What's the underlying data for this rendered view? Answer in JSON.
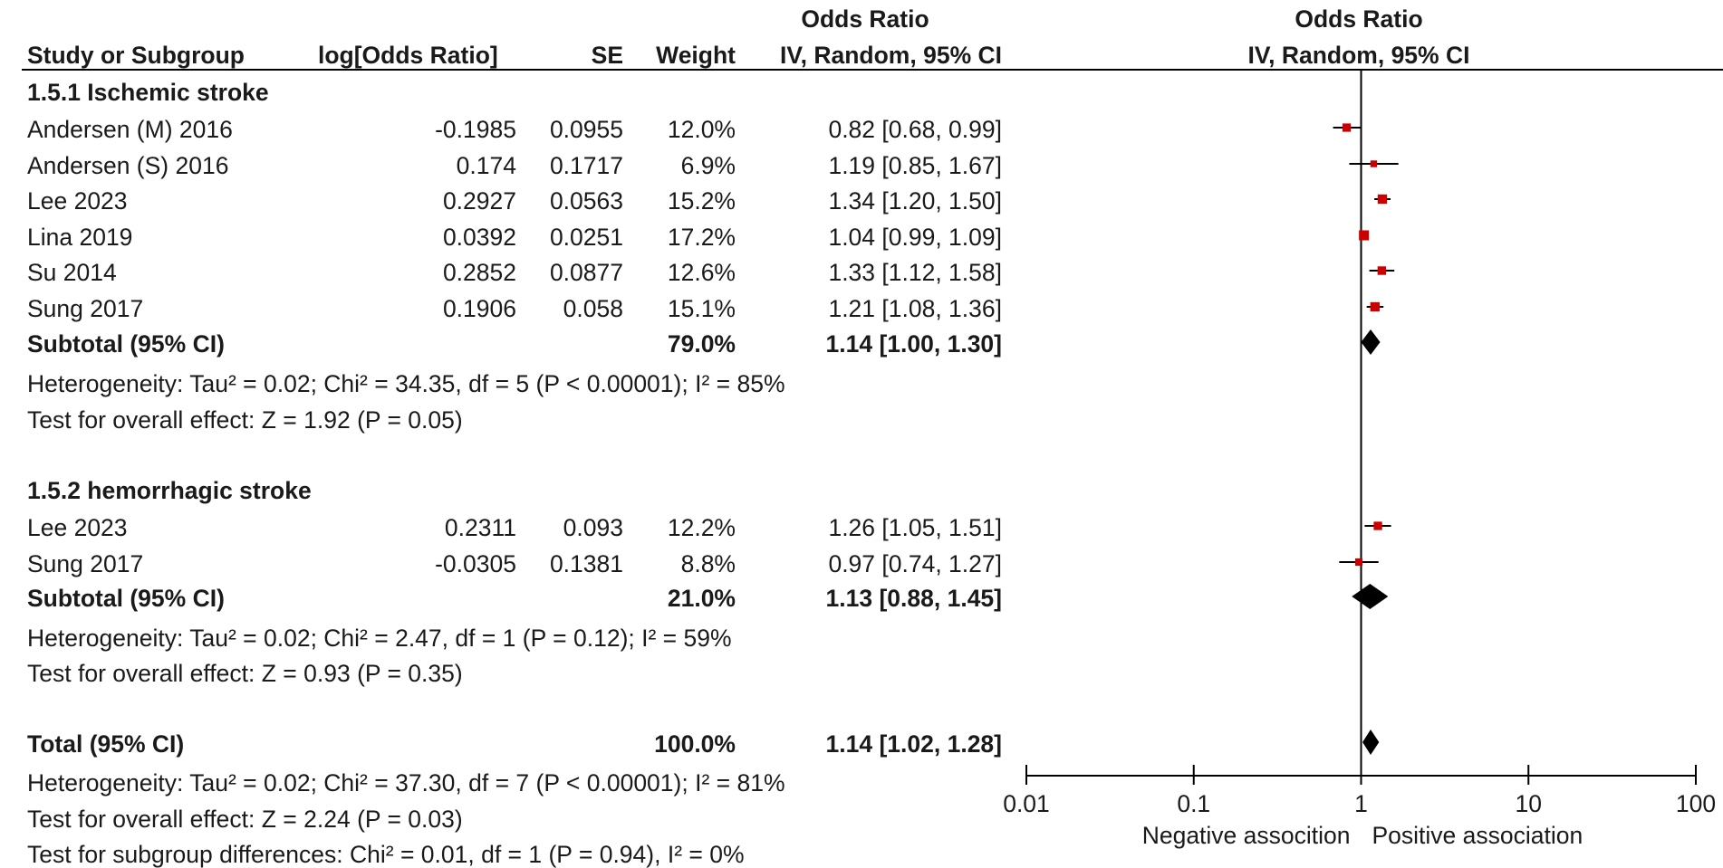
{
  "header": {
    "col_study": "Study or Subgroup",
    "col_log": "log[Odds Ratio]",
    "col_se": "SE",
    "col_weight": "Weight",
    "col_or_title": "Odds Ratio",
    "col_or_sub": "IV, Random, 95% CI",
    "plot_title": "Odds Ratio",
    "plot_sub": "IV, Random, 95% CI"
  },
  "subgroups": [
    {
      "title": "1.5.1 Ischemic stroke",
      "studies": [
        {
          "name": "Andersen (M) 2016",
          "log": "-0.1985",
          "se": "0.0955",
          "weight": "12.0%",
          "ci": "0.82 [0.68, 0.99]"
        },
        {
          "name": "Andersen (S) 2016",
          "log": "0.174",
          "se": "0.1717",
          "weight": "6.9%",
          "ci": "1.19 [0.85, 1.67]"
        },
        {
          "name": "Lee 2023",
          "log": "0.2927",
          "se": "0.0563",
          "weight": "15.2%",
          "ci": "1.34 [1.20, 1.50]"
        },
        {
          "name": "Lina 2019",
          "log": "0.0392",
          "se": "0.0251",
          "weight": "17.2%",
          "ci": "1.04 [0.99, 1.09]"
        },
        {
          "name": "Su 2014",
          "log": "0.2852",
          "se": "0.0877",
          "weight": "12.6%",
          "ci": "1.33 [1.12, 1.58]"
        },
        {
          "name": "Sung 2017",
          "log": "0.1906",
          "se": "0.058",
          "weight": "15.1%",
          "ci": "1.21 [1.08, 1.36]"
        }
      ],
      "subtotal_label": "Subtotal (95% CI)",
      "subtotal_weight": "79.0%",
      "subtotal_ci": "1.14 [1.00, 1.30]",
      "heterogeneity": "Heterogeneity: Tau² = 0.02; Chi² = 34.35, df = 5 (P < 0.00001); I² = 85%",
      "overall": "Test for overall effect: Z = 1.92 (P = 0.05)"
    },
    {
      "title": "1.5.2 hemorrhagic stroke",
      "studies": [
        {
          "name": "Lee 2023",
          "log": "0.2311",
          "se": "0.093",
          "weight": "12.2%",
          "ci": "1.26 [1.05, 1.51]"
        },
        {
          "name": "Sung 2017",
          "log": "-0.0305",
          "se": "0.1381",
          "weight": "8.8%",
          "ci": "0.97 [0.74, 1.27]"
        }
      ],
      "subtotal_label": "Subtotal (95% CI)",
      "subtotal_weight": "21.0%",
      "subtotal_ci": "1.13 [0.88, 1.45]",
      "heterogeneity": "Heterogeneity: Tau² = 0.02; Chi² = 2.47, df = 1 (P = 0.12); I² = 59%",
      "overall": "Test for overall effect: Z = 0.93 (P = 0.35)"
    }
  ],
  "total": {
    "label": "Total (95% CI)",
    "weight": "100.0%",
    "ci": "1.14 [1.02, 1.28]",
    "heterogeneity": "Heterogeneity: Tau² = 0.02; Chi² = 37.30, df = 7 (P < 0.00001); I² = 81%",
    "overall": "Test for overall effect: Z = 2.24 (P = 0.03)",
    "subgroup_diff": "Test for subgroup differences: Chi² = 0.01, df = 1 (P = 0.94), I² = 0%"
  },
  "colors": {
    "marker": "#cc0000",
    "line": "#000000"
  },
  "chart_data": {
    "type": "scatter",
    "scale": "log",
    "xlim": [
      0.01,
      100
    ],
    "ticks": [
      {
        "value": 0.01,
        "label": "0.01"
      },
      {
        "value": 0.1,
        "label": "0.1"
      },
      {
        "value": 1,
        "label": "1"
      },
      {
        "value": 10,
        "label": "10"
      },
      {
        "value": 100,
        "label": "100"
      }
    ],
    "left_label": "Negative assocition",
    "right_label": "Positive association",
    "studies": [
      {
        "group": 0,
        "or": 0.82,
        "lo": 0.68,
        "hi": 0.99,
        "weight": 12.0
      },
      {
        "group": 0,
        "or": 1.19,
        "lo": 0.85,
        "hi": 1.67,
        "weight": 6.9
      },
      {
        "group": 0,
        "or": 1.34,
        "lo": 1.2,
        "hi": 1.5,
        "weight": 15.2
      },
      {
        "group": 0,
        "or": 1.04,
        "lo": 0.99,
        "hi": 1.09,
        "weight": 17.2
      },
      {
        "group": 0,
        "or": 1.33,
        "lo": 1.12,
        "hi": 1.58,
        "weight": 12.6
      },
      {
        "group": 0,
        "or": 1.21,
        "lo": 1.08,
        "hi": 1.36,
        "weight": 15.1
      },
      {
        "group": 1,
        "or": 1.26,
        "lo": 1.05,
        "hi": 1.51,
        "weight": 12.2
      },
      {
        "group": 1,
        "or": 0.97,
        "lo": 0.74,
        "hi": 1.27,
        "weight": 8.8
      }
    ],
    "diamonds": [
      {
        "kind": "subtotal",
        "or": 1.14,
        "lo": 1.0,
        "hi": 1.3
      },
      {
        "kind": "subtotal",
        "or": 1.13,
        "lo": 0.88,
        "hi": 1.45
      },
      {
        "kind": "total",
        "or": 1.14,
        "lo": 1.02,
        "hi": 1.28
      }
    ]
  }
}
